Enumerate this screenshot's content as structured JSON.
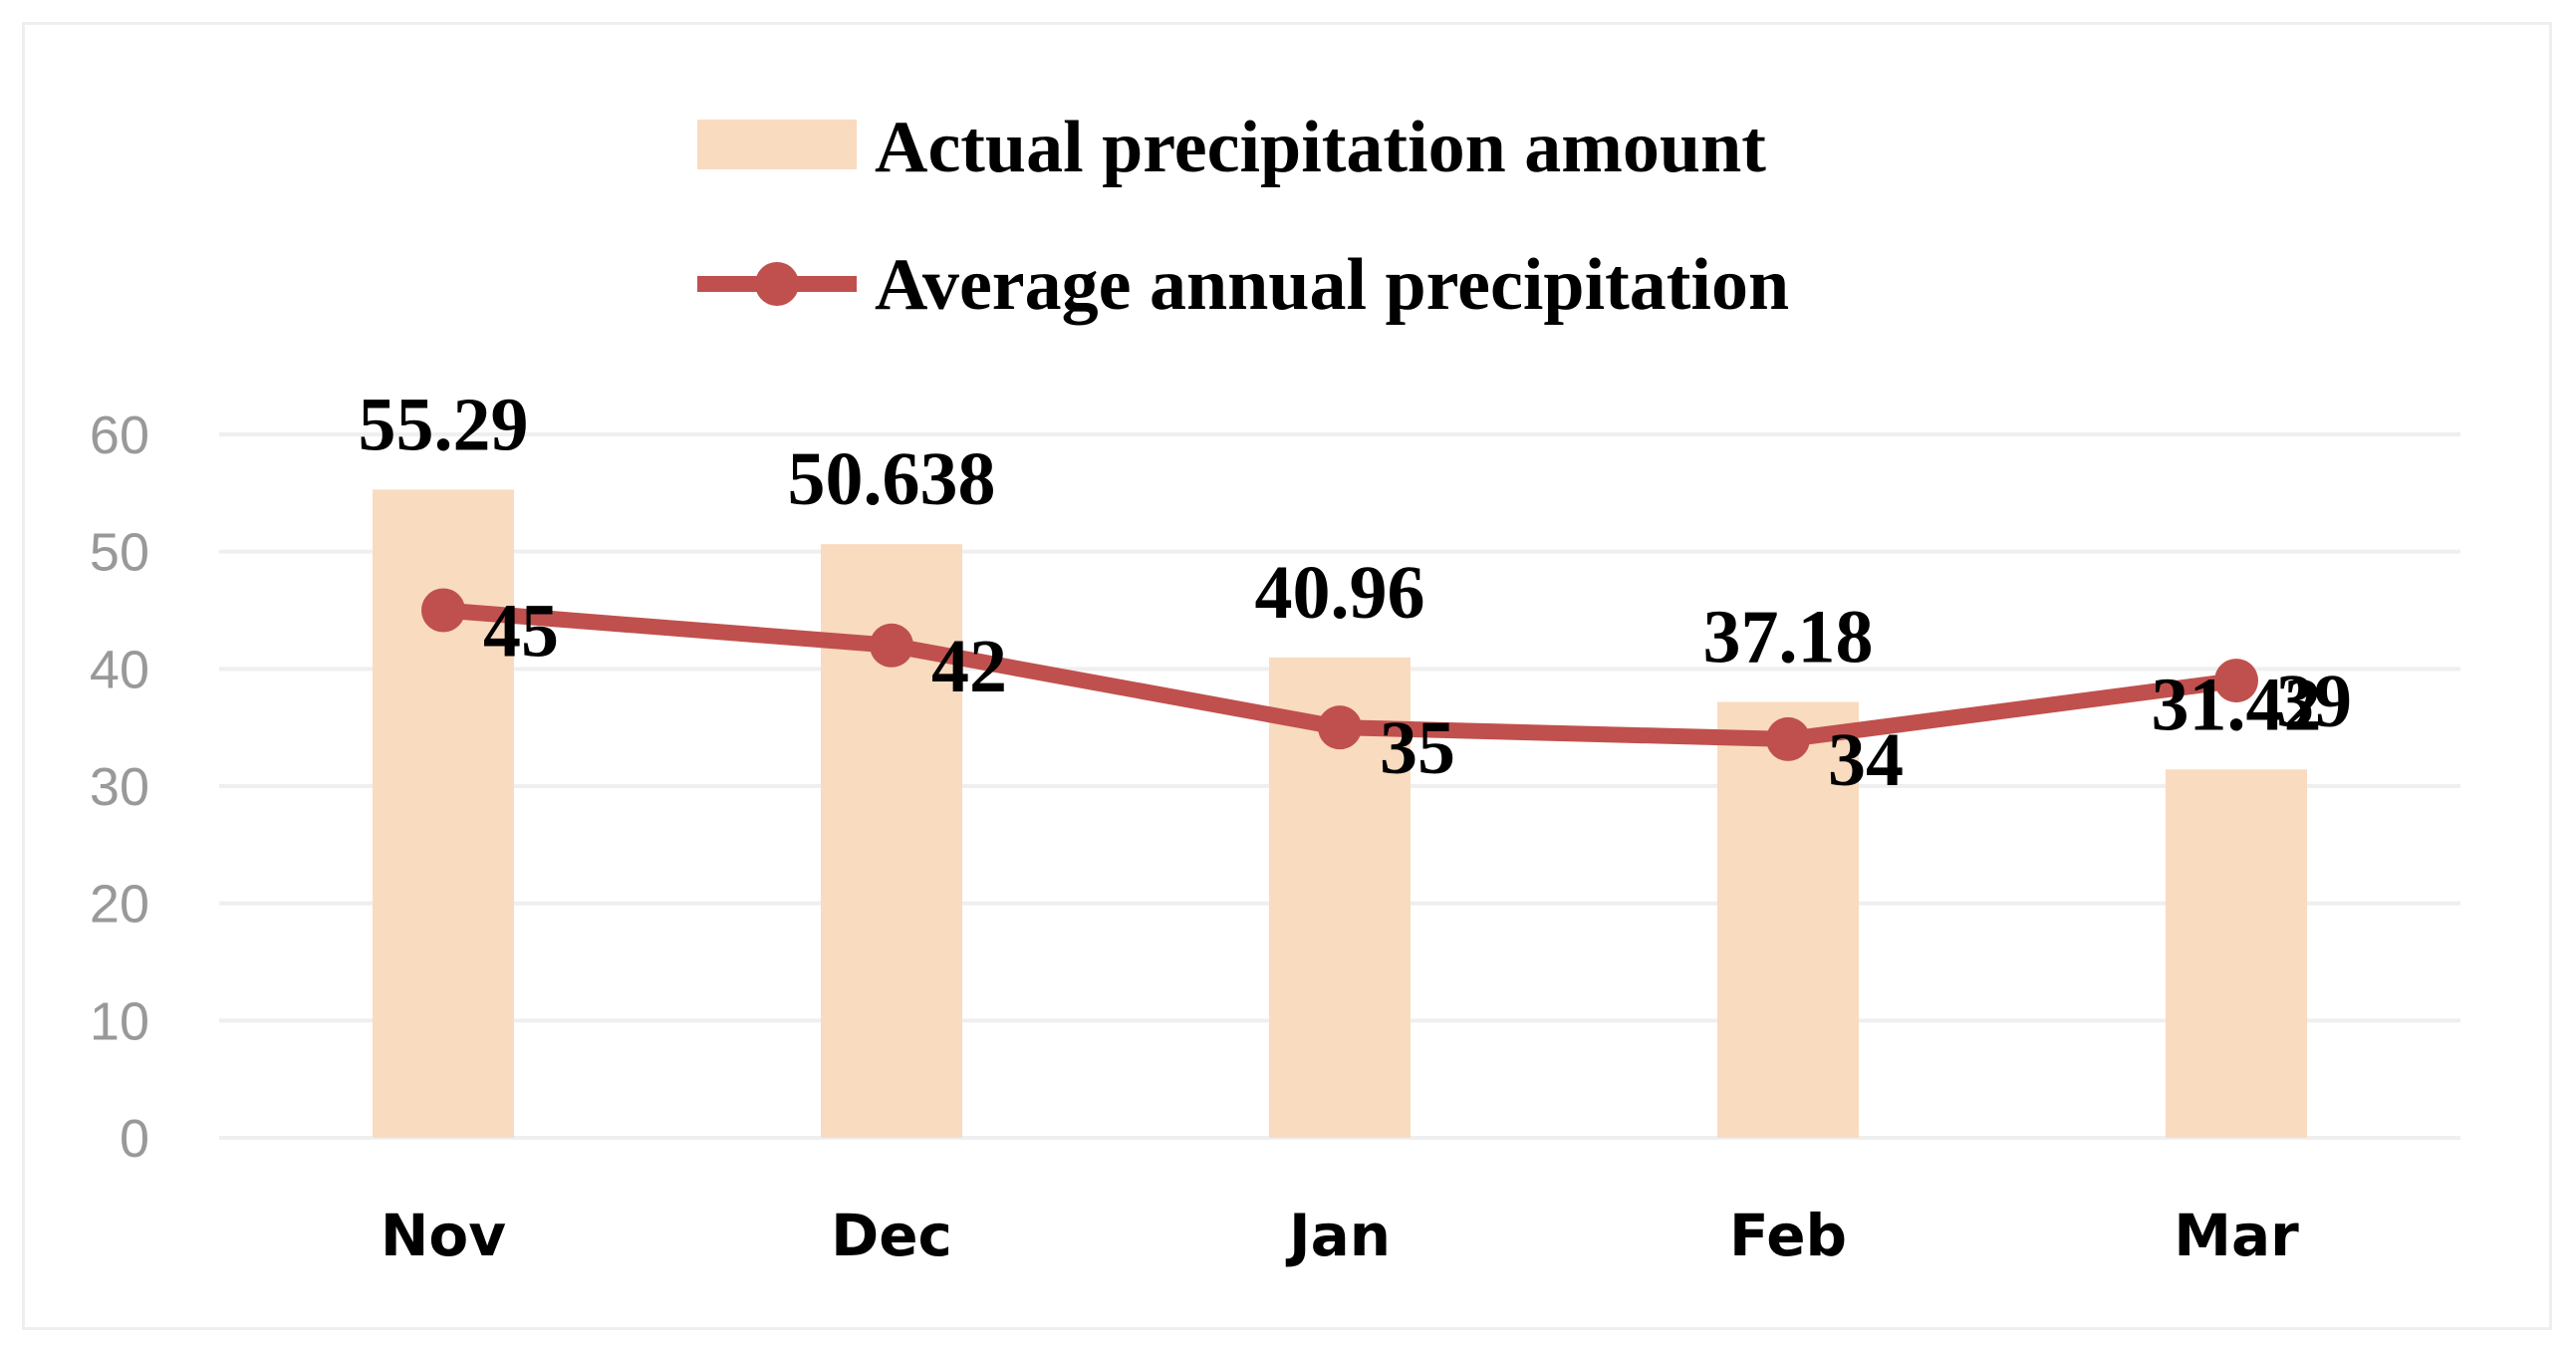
{
  "chart_data": {
    "type": "bar+line",
    "categories": [
      "Nov",
      "Dec",
      "Jan",
      "Feb",
      "Mar"
    ],
    "series": [
      {
        "name": "Actual precipitation amount",
        "type": "bar",
        "values": [
          55.29,
          50.638,
          40.96,
          37.18,
          31.42
        ],
        "labels": [
          "55.29",
          "50.638",
          "40.96",
          "37.18",
          "31.42"
        ],
        "color": "#f9dbc0"
      },
      {
        "name": "Average annual precipitation",
        "type": "line",
        "values": [
          45,
          42,
          35,
          34,
          39
        ],
        "labels": [
          "45",
          "42",
          "35",
          "34",
          "39"
        ],
        "color": "#c0504d"
      }
    ],
    "yticks": [
      "0",
      "10",
      "20",
      "30",
      "40",
      "50",
      "60"
    ],
    "ylim": [
      0,
      60
    ],
    "grid": true,
    "legend": "top"
  }
}
